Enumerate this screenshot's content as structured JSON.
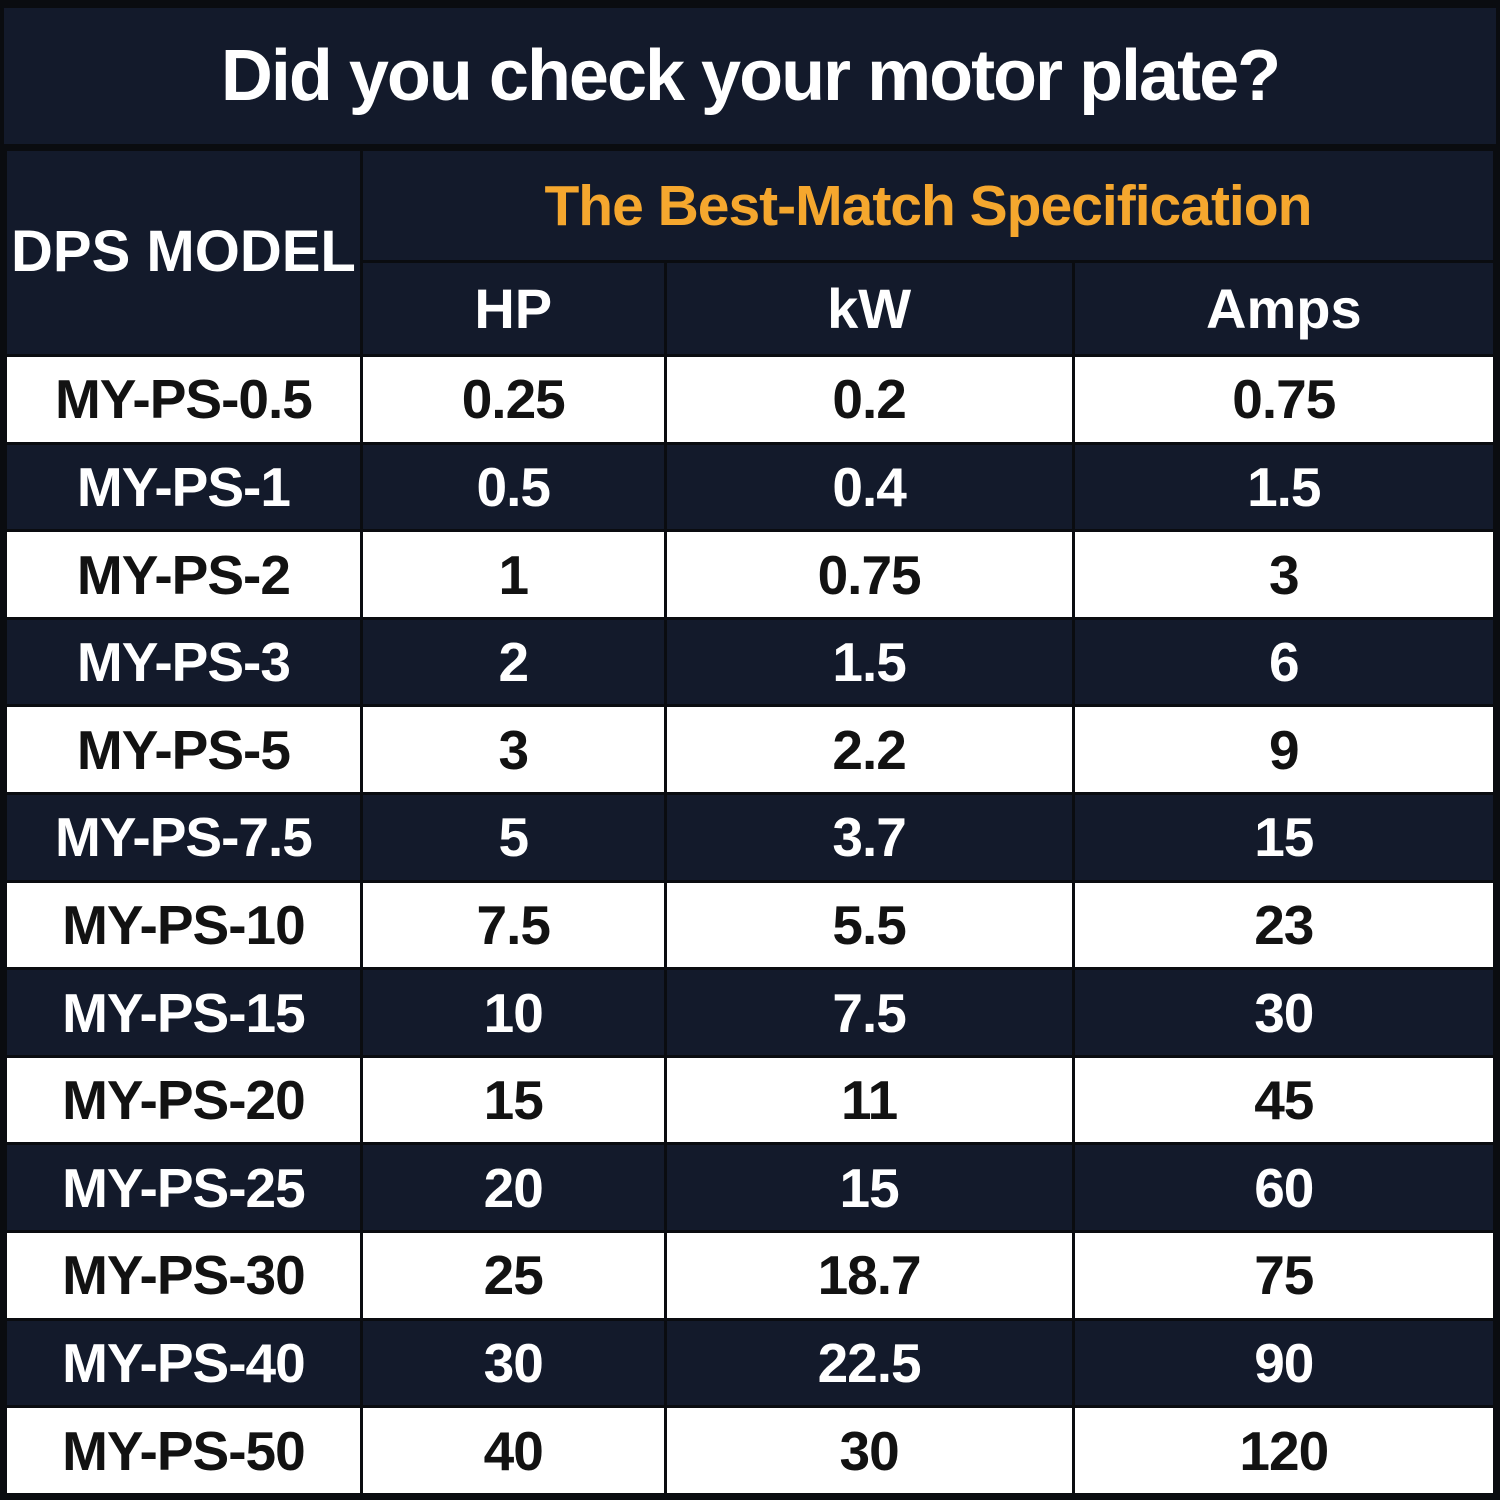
{
  "poster": {
    "title": "Did you check your motor plate?"
  },
  "table": {
    "model_header": "DPS MODEL",
    "spec_header": "The Best-Match Specification",
    "columns": [
      "HP",
      "kW",
      "Amps"
    ]
  },
  "chart_data": {
    "type": "table",
    "title": "Did you check your motor plate?",
    "group_header": "The Best-Match Specification",
    "columns": [
      "DPS MODEL",
      "HP",
      "kW",
      "Amps"
    ],
    "rows": [
      [
        "MY-PS-0.5",
        "0.25",
        "0.2",
        "0.75"
      ],
      [
        "MY-PS-1",
        "0.5",
        "0.4",
        "1.5"
      ],
      [
        "MY-PS-2",
        "1",
        "0.75",
        "3"
      ],
      [
        "MY-PS-3",
        "2",
        "1.5",
        "6"
      ],
      [
        "MY-PS-5",
        "3",
        "2.2",
        "9"
      ],
      [
        "MY-PS-7.5",
        "5",
        "3.7",
        "15"
      ],
      [
        "MY-PS-10",
        "7.5",
        "5.5",
        "23"
      ],
      [
        "MY-PS-15",
        "10",
        "7.5",
        "30"
      ],
      [
        "MY-PS-20",
        "15",
        "11",
        "45"
      ],
      [
        "MY-PS-25",
        "20",
        "15",
        "60"
      ],
      [
        "MY-PS-30",
        "25",
        "18.7",
        "75"
      ],
      [
        "MY-PS-40",
        "30",
        "22.5",
        "90"
      ],
      [
        "MY-PS-50",
        "40",
        "30",
        "120"
      ]
    ],
    "layout": {
      "row_striping": [
        "white",
        "navy"
      ],
      "header_background": "navy"
    }
  },
  "colors": {
    "navy": "#131A2B",
    "line": "#0a0c10",
    "orange": "#F5A72E",
    "white": "#FFFFFF",
    "dark_text": "#121212"
  }
}
